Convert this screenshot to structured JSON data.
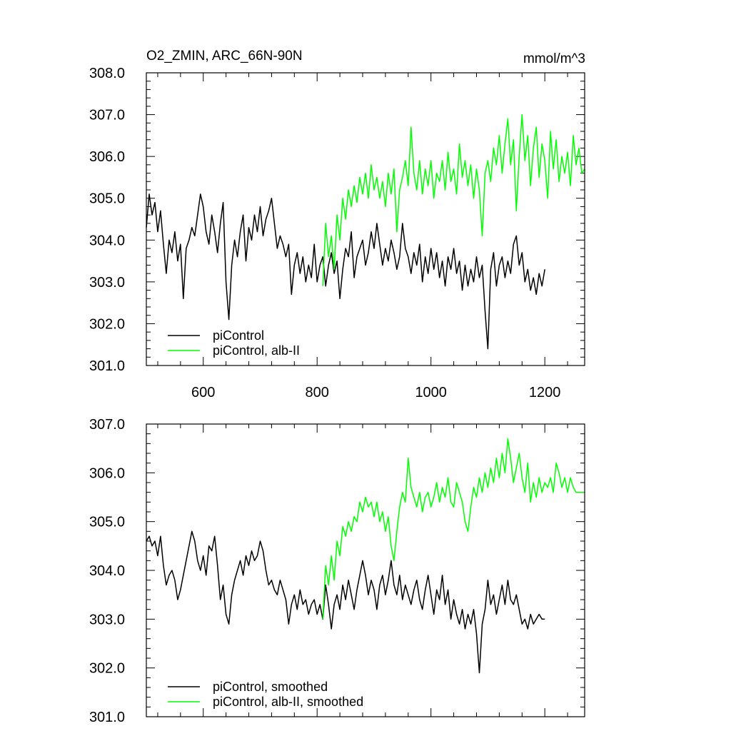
{
  "chart_data": [
    {
      "type": "line",
      "title": "O2_ZMIN, ARC_66N-90N",
      "units": "mmol/m^3",
      "xlim": [
        500,
        1270
      ],
      "ylim": [
        301.0,
        308.0
      ],
      "x_ticks": [
        600,
        800,
        1000,
        1200
      ],
      "y_ticks": [
        "301.0",
        "302.0",
        "303.0",
        "304.0",
        "305.0",
        "306.0",
        "307.0",
        "308.0"
      ],
      "legend_position": "bottom-left",
      "series": [
        {
          "name": "piControl",
          "color": "#000000",
          "x": [
            500,
            505,
            510,
            515,
            520,
            525,
            530,
            535,
            540,
            545,
            550,
            555,
            560,
            565,
            570,
            575,
            580,
            585,
            590,
            595,
            600,
            605,
            610,
            615,
            620,
            625,
            630,
            635,
            640,
            645,
            650,
            655,
            660,
            665,
            670,
            675,
            680,
            685,
            690,
            695,
            700,
            705,
            710,
            715,
            720,
            725,
            730,
            735,
            740,
            745,
            750,
            755,
            760,
            765,
            770,
            775,
            780,
            785,
            790,
            795,
            800,
            805,
            810,
            815,
            820,
            825,
            830,
            835,
            840,
            845,
            850,
            855,
            860,
            865,
            870,
            875,
            880,
            885,
            890,
            895,
            900,
            905,
            910,
            915,
            920,
            925,
            930,
            935,
            940,
            945,
            950,
            955,
            960,
            965,
            970,
            975,
            980,
            985,
            990,
            995,
            1000,
            1005,
            1010,
            1015,
            1020,
            1025,
            1030,
            1035,
            1040,
            1045,
            1050,
            1055,
            1060,
            1065,
            1070,
            1075,
            1080,
            1085,
            1090,
            1095,
            1100,
            1105,
            1110,
            1115,
            1120,
            1125,
            1130,
            1135,
            1140,
            1145,
            1150,
            1155,
            1160,
            1165,
            1170,
            1175,
            1180,
            1185,
            1190,
            1195,
            1200
          ],
          "values": [
            304.3,
            305.1,
            304.6,
            304.9,
            304.2,
            304.7,
            303.9,
            303.2,
            304.0,
            303.7,
            304.2,
            303.5,
            303.9,
            302.6,
            303.8,
            304.0,
            304.3,
            304.1,
            304.6,
            305.1,
            304.8,
            304.2,
            303.9,
            304.6,
            304.2,
            303.7,
            304.4,
            304.9,
            303.0,
            302.1,
            303.4,
            304.0,
            303.6,
            304.2,
            304.6,
            303.5,
            304.3,
            304.0,
            304.6,
            304.2,
            304.8,
            304.1,
            304.5,
            304.7,
            305.0,
            304.4,
            303.8,
            304.1,
            303.9,
            303.6,
            303.9,
            302.7,
            303.4,
            303.7,
            303.2,
            303.6,
            303.0,
            303.4,
            303.1,
            303.9,
            303.0,
            303.4,
            303.6,
            302.9,
            303.4,
            303.7,
            303.2,
            303.5,
            302.6,
            303.3,
            303.8,
            303.6,
            304.2,
            303.1,
            303.6,
            303.8,
            304.0,
            303.4,
            303.7,
            304.2,
            303.8,
            304.4,
            303.9,
            303.4,
            303.8,
            303.5,
            304.0,
            303.7,
            303.3,
            303.6,
            304.4,
            303.8,
            303.6,
            303.2,
            303.7,
            303.4,
            303.9,
            303.0,
            303.6,
            303.2,
            303.8,
            303.3,
            303.7,
            303.1,
            303.5,
            302.9,
            303.6,
            303.3,
            303.8,
            303.2,
            303.5,
            302.8,
            303.4,
            302.9,
            303.3,
            303.0,
            303.6,
            303.1,
            303.4,
            302.3,
            301.4,
            303.3,
            303.7,
            302.9,
            303.4,
            303.6,
            303.1,
            303.5,
            303.2,
            303.9,
            304.1,
            303.4,
            303.7,
            303.0,
            303.3,
            302.8,
            303.1,
            302.7,
            303.2,
            302.9,
            303.3
          ]
        },
        {
          "name": "piControl, alb-II",
          "color": "#00ff00",
          "x": [
            810,
            815,
            820,
            825,
            830,
            835,
            840,
            845,
            850,
            855,
            860,
            865,
            870,
            875,
            880,
            885,
            890,
            895,
            900,
            905,
            910,
            915,
            920,
            925,
            930,
            935,
            940,
            945,
            950,
            955,
            960,
            965,
            970,
            975,
            980,
            985,
            990,
            995,
            1000,
            1005,
            1010,
            1015,
            1020,
            1025,
            1030,
            1035,
            1040,
            1045,
            1050,
            1055,
            1060,
            1065,
            1070,
            1075,
            1080,
            1085,
            1090,
            1095,
            1100,
            1105,
            1110,
            1115,
            1120,
            1125,
            1130,
            1135,
            1140,
            1145,
            1150,
            1155,
            1160,
            1165,
            1170,
            1175,
            1180,
            1185,
            1190,
            1195,
            1200,
            1205,
            1210,
            1215,
            1220,
            1225,
            1230,
            1235,
            1240,
            1245,
            1250,
            1255,
            1260,
            1265,
            1270
          ],
          "values": [
            302.9,
            304.4,
            303.6,
            304.1,
            303.3,
            304.6,
            304.0,
            305.0,
            304.5,
            305.2,
            304.8,
            305.3,
            304.9,
            305.5,
            305.1,
            305.6,
            305.0,
            305.8,
            305.2,
            305.5,
            305.0,
            305.4,
            304.8,
            305.6,
            305.1,
            305.7,
            304.2,
            305.2,
            305.5,
            305.9,
            305.3,
            306.7,
            305.6,
            305.2,
            305.9,
            305.1,
            305.7,
            305.3,
            305.9,
            305.0,
            305.6,
            305.4,
            305.9,
            305.2,
            306.1,
            305.4,
            305.7,
            305.1,
            306.3,
            305.5,
            305.9,
            305.3,
            305.8,
            305.0,
            305.7,
            305.2,
            304.1,
            305.6,
            305.9,
            305.4,
            306.2,
            305.8,
            306.5,
            305.6,
            306.3,
            306.9,
            305.8,
            306.4,
            304.7,
            306.0,
            307.0,
            305.9,
            306.5,
            305.3,
            306.2,
            306.7,
            305.5,
            306.3,
            305.9,
            305.0,
            306.6,
            305.7,
            306.4,
            305.4,
            306.0,
            305.6,
            306.1,
            305.3,
            306.5,
            305.8,
            306.2,
            305.6,
            305.7
          ]
        }
      ]
    },
    {
      "type": "line",
      "title": "",
      "xlim": [
        500,
        1270
      ],
      "ylim": [
        301.0,
        307.0
      ],
      "y_ticks": [
        "301.0",
        "302.0",
        "303.0",
        "304.0",
        "305.0",
        "306.0",
        "307.0"
      ],
      "legend_position": "bottom-left",
      "series": [
        {
          "name": "piControl, smoothed",
          "color": "#000000",
          "x": [
            500,
            505,
            510,
            515,
            520,
            525,
            530,
            535,
            540,
            545,
            550,
            555,
            560,
            565,
            570,
            575,
            580,
            585,
            590,
            595,
            600,
            605,
            610,
            615,
            620,
            625,
            630,
            635,
            640,
            645,
            650,
            655,
            660,
            665,
            670,
            675,
            680,
            685,
            690,
            695,
            700,
            705,
            710,
            715,
            720,
            725,
            730,
            735,
            740,
            745,
            750,
            755,
            760,
            765,
            770,
            775,
            780,
            785,
            790,
            795,
            800,
            805,
            810,
            815,
            820,
            825,
            830,
            835,
            840,
            845,
            850,
            855,
            860,
            865,
            870,
            875,
            880,
            885,
            890,
            895,
            900,
            905,
            910,
            915,
            920,
            925,
            930,
            935,
            940,
            945,
            950,
            955,
            960,
            965,
            970,
            975,
            980,
            985,
            990,
            995,
            1000,
            1005,
            1010,
            1015,
            1020,
            1025,
            1030,
            1035,
            1040,
            1045,
            1050,
            1055,
            1060,
            1065,
            1070,
            1075,
            1080,
            1085,
            1090,
            1095,
            1100,
            1105,
            1110,
            1115,
            1120,
            1125,
            1130,
            1135,
            1140,
            1145,
            1150,
            1155,
            1160,
            1165,
            1170,
            1175,
            1180,
            1185,
            1190,
            1195,
            1200
          ],
          "values": [
            304.6,
            304.7,
            304.5,
            304.6,
            304.3,
            304.7,
            304.1,
            303.7,
            303.9,
            304.0,
            303.8,
            303.4,
            303.6,
            303.9,
            304.2,
            304.5,
            304.8,
            304.6,
            304.2,
            304.0,
            304.3,
            303.9,
            304.5,
            304.4,
            304.7,
            304.1,
            303.4,
            303.7,
            303.1,
            302.9,
            303.5,
            303.8,
            304.0,
            304.2,
            303.9,
            304.3,
            304.1,
            304.4,
            304.2,
            304.3,
            304.6,
            304.4,
            304.0,
            303.7,
            303.8,
            303.6,
            303.5,
            303.8,
            303.6,
            303.4,
            302.9,
            303.3,
            303.5,
            303.2,
            303.6,
            303.3,
            303.4,
            303.1,
            303.3,
            303.4,
            303.1,
            303.3,
            303.0,
            303.7,
            303.3,
            302.8,
            303.3,
            303.5,
            303.2,
            303.7,
            303.4,
            303.8,
            303.5,
            303.2,
            303.6,
            303.9,
            304.2,
            303.9,
            303.5,
            303.8,
            303.6,
            303.2,
            303.7,
            303.9,
            303.5,
            303.8,
            304.2,
            303.7,
            303.5,
            303.9,
            303.4,
            303.7,
            303.5,
            303.3,
            303.6,
            303.8,
            303.4,
            303.2,
            303.6,
            303.9,
            303.5,
            303.1,
            303.6,
            303.4,
            303.9,
            303.3,
            303.6,
            303.0,
            303.4,
            303.1,
            302.9,
            303.2,
            302.8,
            303.1,
            302.9,
            303.2,
            302.7,
            301.9,
            302.9,
            303.2,
            303.8,
            303.3,
            303.5,
            303.1,
            303.4,
            303.7,
            303.3,
            303.8,
            303.4,
            303.3,
            303.5,
            303.2,
            302.9,
            303.0,
            302.8,
            303.1,
            302.9,
            303.0,
            303.1,
            303.0,
            303.0
          ]
        },
        {
          "name": "piControl, alb-II, smoothed",
          "color": "#00ff00",
          "x": [
            810,
            815,
            820,
            825,
            830,
            835,
            840,
            845,
            850,
            855,
            860,
            865,
            870,
            875,
            880,
            885,
            890,
            895,
            900,
            905,
            910,
            915,
            920,
            925,
            930,
            935,
            940,
            945,
            950,
            955,
            960,
            965,
            970,
            975,
            980,
            985,
            990,
            995,
            1000,
            1005,
            1010,
            1015,
            1020,
            1025,
            1030,
            1035,
            1040,
            1045,
            1050,
            1055,
            1060,
            1065,
            1070,
            1075,
            1080,
            1085,
            1090,
            1095,
            1100,
            1105,
            1110,
            1115,
            1120,
            1125,
            1130,
            1135,
            1140,
            1145,
            1150,
            1155,
            1160,
            1165,
            1170,
            1175,
            1180,
            1185,
            1190,
            1195,
            1200,
            1205,
            1210,
            1215,
            1220,
            1225,
            1230,
            1235,
            1240,
            1245,
            1250,
            1255,
            1260,
            1265,
            1270
          ],
          "values": [
            303.0,
            304.1,
            303.7,
            304.3,
            303.8,
            304.6,
            304.3,
            304.9,
            304.7,
            305.0,
            304.8,
            305.1,
            305.0,
            305.4,
            305.2,
            305.5,
            305.3,
            305.4,
            305.1,
            305.4,
            305.0,
            305.2,
            304.8,
            305.1,
            304.5,
            304.2,
            304.8,
            305.3,
            305.6,
            305.4,
            306.3,
            305.7,
            305.5,
            305.3,
            305.6,
            305.2,
            305.5,
            305.6,
            305.3,
            305.5,
            305.8,
            305.4,
            305.7,
            305.5,
            305.9,
            305.4,
            305.3,
            305.8,
            305.6,
            305.4,
            305.0,
            304.8,
            305.3,
            305.7,
            305.5,
            305.9,
            305.6,
            306.0,
            305.7,
            306.1,
            305.8,
            306.3,
            305.9,
            306.4,
            306.0,
            306.7,
            306.3,
            305.8,
            306.1,
            306.4,
            305.9,
            305.6,
            306.2,
            305.4,
            305.8,
            305.5,
            305.9,
            305.6,
            305.8,
            305.7,
            305.9,
            305.6,
            306.2,
            306.0,
            305.7,
            305.9,
            305.6,
            305.9,
            305.7,
            305.6,
            305.6,
            305.6,
            305.6
          ]
        }
      ]
    }
  ]
}
